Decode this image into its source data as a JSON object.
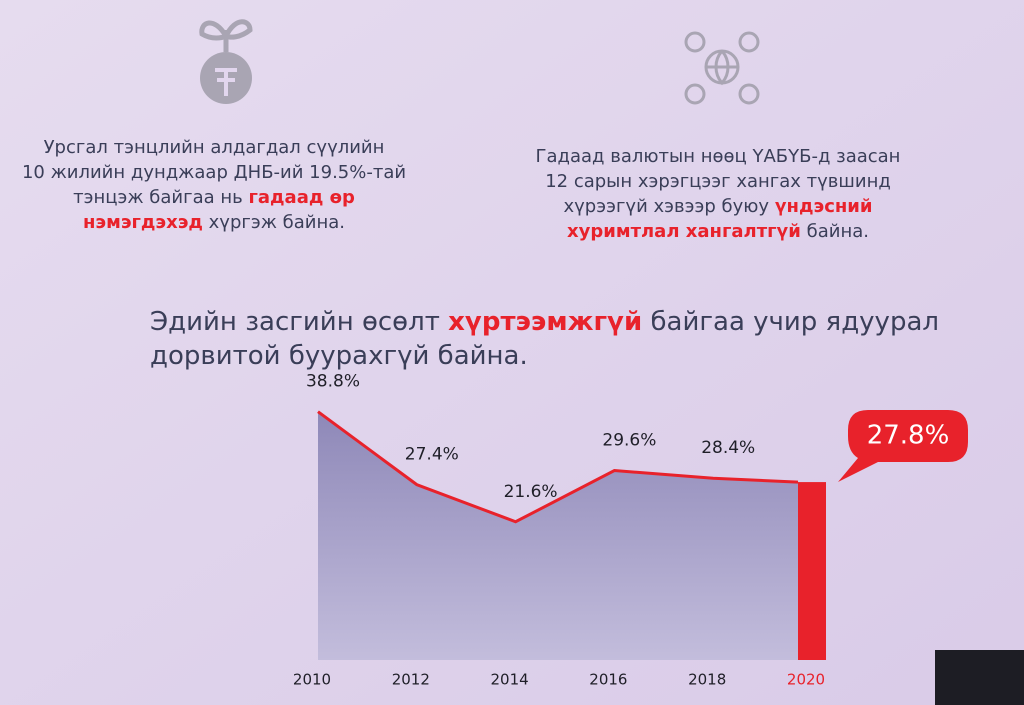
{
  "left_text": [
    [
      {
        "text": "Урсгал тэнцлийн алдагдал сүүлийн",
        "bold": false
      }
    ],
    [
      {
        "text": "10 жилийн дунджаар ДНБ-ий 19.5%-тай",
        "bold": false
      }
    ],
    [
      {
        "text": "тэнцэж байгаа нь ",
        "bold": false
      },
      {
        "text": "гадаад өр",
        "bold": true
      }
    ],
    [
      {
        "text": "нэмэгдэхэд",
        "bold": true
      },
      {
        "text": " хүргэж байна.",
        "bold": false
      }
    ]
  ],
  "right_text": [
    [
      {
        "text": "Гадаад валютын нөөц ҮАБҮБ-д заасан",
        "bold": false
      }
    ],
    [
      {
        "text": "12 сарын хэрэгцээг хангах түвшинд",
        "bold": false
      }
    ],
    [
      {
        "text": "хүрээгүй хэвээр буюу ",
        "bold": false
      },
      {
        "text": "үндэсний",
        "bold": true
      }
    ],
    [
      {
        "text": "хуримтлал хангалтгүй",
        "bold": true
      },
      {
        "text": " байна.",
        "bold": false
      }
    ]
  ],
  "headline": [
    [
      {
        "text": "Эдийн засгийн өсөлт ",
        "bold": false
      },
      {
        "text": "хүртээмжгүй",
        "bold": true
      },
      {
        "text": " байгаа учир ядуурал",
        "bold": false
      }
    ],
    [
      {
        "text": "дорвитой буурахгүй байна.",
        "bold": false
      }
    ]
  ],
  "emphasis_color": "#e8222b",
  "chart_data": {
    "type": "area",
    "x": [
      2010,
      2012,
      2014,
      2016,
      2018,
      2020
    ],
    "values": [
      38.8,
      27.4,
      21.6,
      29.6,
      28.4,
      27.8
    ],
    "value_labels": [
      "38.8%",
      "27.4%",
      "21.6%",
      "29.6%",
      "28.4%",
      "27.8%"
    ],
    "xlim": [
      2010,
      2020
    ],
    "ylim": [
      0,
      40
    ],
    "color": "#e8222b",
    "area_color": "#9b95c2",
    "highlight_last": true
  }
}
